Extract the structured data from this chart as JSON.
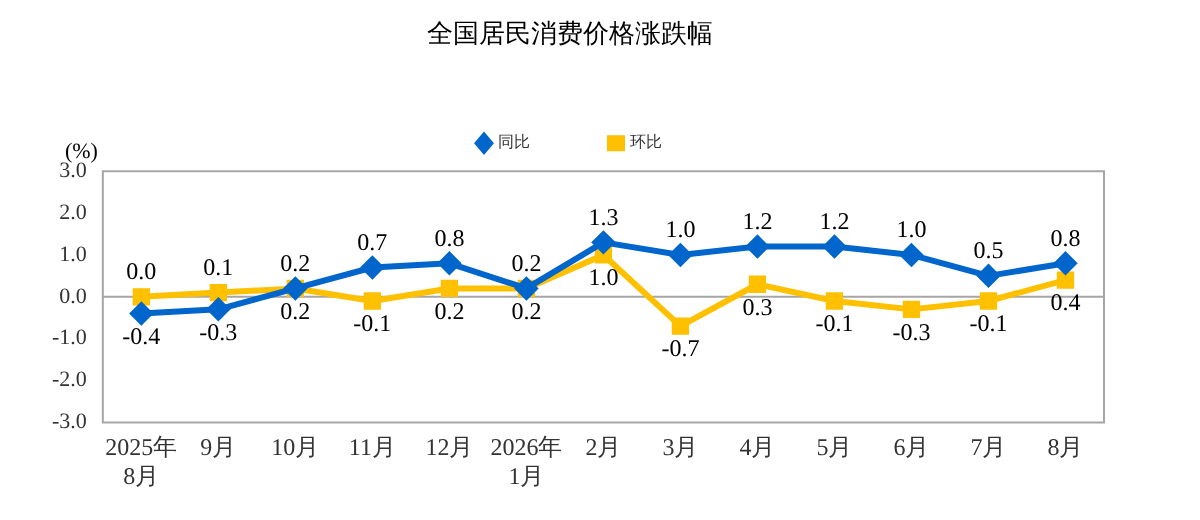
{
  "chart_data": {
    "type": "line",
    "title": "全国居民消费价格涨跌幅",
    "ylabel": "(%)",
    "categories": [
      "2025年\n8月",
      "9月",
      "10月",
      "11月",
      "12月",
      "2026年\n1月",
      "2月",
      "3月",
      "4月",
      "5月",
      "6月",
      "7月",
      "8月"
    ],
    "series": [
      {
        "name": "同比",
        "color": "#0066cc",
        "marker": "diamond",
        "values": [
          -0.4,
          -0.3,
          0.2,
          0.7,
          0.8,
          0.2,
          1.3,
          1.0,
          1.2,
          1.2,
          1.0,
          0.5,
          0.8
        ],
        "value_labels": [
          "-0.4",
          "-0.3",
          "0.2",
          "0.7",
          "0.8",
          "0.2",
          "1.3",
          "1.0",
          "1.2",
          "1.2",
          "1.0",
          "0.5",
          "0.8"
        ]
      },
      {
        "name": "环比",
        "color": "#ffc000",
        "marker": "square",
        "values": [
          0.0,
          0.1,
          0.2,
          -0.1,
          0.2,
          0.2,
          1.0,
          -0.7,
          0.3,
          -0.1,
          -0.3,
          -0.1,
          0.4
        ],
        "value_labels": [
          "0.0",
          "0.1",
          "0.2",
          "-0.1",
          "0.2",
          "0.2",
          "1.0",
          "-0.7",
          "0.3",
          "-0.1",
          "-0.3",
          "-0.1",
          "0.4"
        ]
      }
    ],
    "ylim": [
      -3,
      3
    ],
    "yticks": [
      {
        "value": 3,
        "label": "3.0"
      },
      {
        "value": 2,
        "label": "2.0"
      },
      {
        "value": 1,
        "label": "1.0"
      },
      {
        "value": 0,
        "label": "0.0"
      },
      {
        "value": -1,
        "label": "-1.0"
      },
      {
        "value": -2,
        "label": "-2.0"
      },
      {
        "value": -3,
        "label": "-3.0"
      }
    ],
    "ref_lines": [
      {
        "axis": "y",
        "value": 0,
        "color": "#a6a6a6"
      }
    ],
    "grid": false,
    "legend": "top",
    "line_style": "solid"
  }
}
